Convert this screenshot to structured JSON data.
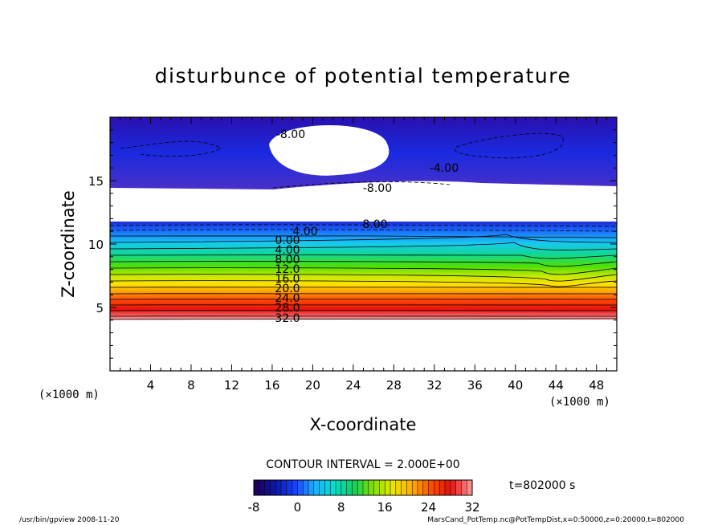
{
  "chart_data": {
    "type": "contour",
    "title": "disturbunce of potential temperature",
    "xlabel": "X-coordinate",
    "ylabel": "Z-coordinate",
    "x_unit": "(×1000 m)",
    "y_unit": "(×1000 m)",
    "xlim": [
      0,
      50
    ],
    "ylim": [
      0,
      20
    ],
    "x_ticks": [
      "4",
      "8",
      "12",
      "16",
      "20",
      "24",
      "28",
      "32",
      "36",
      "40",
      "44",
      "48"
    ],
    "y_ticks": [
      "5",
      "10",
      "15"
    ],
    "contour_labels": [
      "-8.00",
      "-4.00",
      "-8.00",
      "8.00",
      "4.00",
      "0.00",
      "4.00",
      "8.00",
      "12.0",
      "16.0",
      "20.0",
      "24.0",
      "28.0",
      "32.0"
    ],
    "contour_interval_text": "CONTOUR INTERVAL = 2.000E+00",
    "time_text": "t=802000 s",
    "colorbar": {
      "ticks": [
        "-8",
        "0",
        "8",
        "16",
        "24",
        "32"
      ],
      "min": -8,
      "max": 32,
      "colors": [
        "#1e0060",
        "#0a1aa8",
        "#1a40ff",
        "#1fb0ff",
        "#00e0d0",
        "#10d060",
        "#80e000",
        "#e8e800",
        "#ffb000",
        "#ff5000",
        "#e01010",
        "#ff8a8a"
      ]
    },
    "colors": {
      "deep": "#1e0060",
      "blue": "#1a30e0",
      "purple": "#5a30c8"
    }
  },
  "footer": {
    "left": "/usr/bin/gpview   2008-11-20",
    "right": "MarsCand_PotTemp.nc@PotTempDist,x=0:50000,z=0:20000,t=802000"
  }
}
